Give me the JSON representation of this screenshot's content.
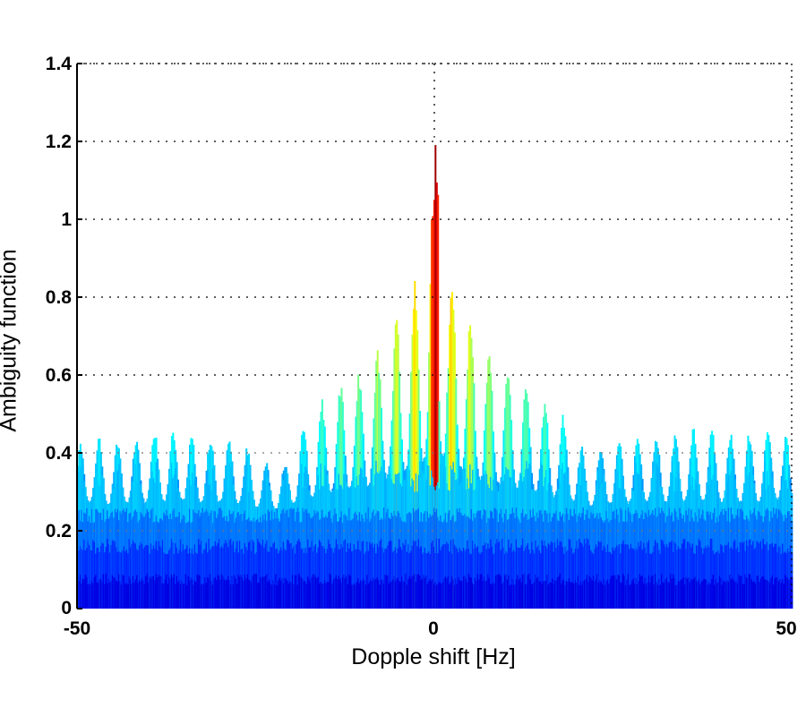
{
  "chart_data": {
    "type": "area",
    "subtype": "3d-surface-side-view (ambiguity function)",
    "title": "",
    "xlabel": "Dopple shift [Hz]",
    "ylabel": "Ambiguity function",
    "xlim": [
      -50,
      50
    ],
    "ylim": [
      0,
      1.4
    ],
    "xticks": [
      "-50",
      "0",
      "50"
    ],
    "yticks": [
      "0",
      "0.2",
      "0.4",
      "0.6",
      "0.8",
      "1",
      "1.2",
      "1.4"
    ],
    "grid": true,
    "legend": null,
    "colormap": "jet",
    "peak": {
      "x": 0,
      "y": 1.21
    },
    "envelope": {
      "x": [
        -50,
        -48,
        -45,
        -42,
        -39,
        -36,
        -33,
        -30,
        -27,
        -24,
        -21,
        -20,
        -18,
        -15,
        -12,
        -10,
        -8,
        -6,
        -4,
        -2,
        -1,
        0,
        1,
        2,
        4,
        6,
        8,
        10,
        12,
        15,
        18,
        20,
        21,
        24,
        27,
        30,
        33,
        36,
        39,
        42,
        45,
        48,
        50
      ],
      "y": [
        0.42,
        0.45,
        0.43,
        0.44,
        0.46,
        0.47,
        0.44,
        0.45,
        0.43,
        0.38,
        0.37,
        0.43,
        0.49,
        0.56,
        0.6,
        0.62,
        0.67,
        0.74,
        0.83,
        0.86,
        0.96,
        1.21,
        0.94,
        0.88,
        0.8,
        0.72,
        0.66,
        0.62,
        0.6,
        0.54,
        0.5,
        0.44,
        0.4,
        0.43,
        0.44,
        0.46,
        0.45,
        0.47,
        0.46,
        0.45,
        0.46,
        0.49,
        0.41
      ]
    },
    "floor_band": {
      "description": "dense blue base layer",
      "y_range": [
        0,
        0.3
      ]
    }
  },
  "axes": {
    "x_tick_labels": [
      "-50",
      "0",
      "50"
    ],
    "y_tick_labels": [
      "0",
      "0.2",
      "0.4",
      "0.6",
      "0.8",
      "1",
      "1.2",
      "1.4"
    ],
    "xlabel": "Dopple shift [Hz]",
    "ylabel": "Ambiguity function"
  }
}
